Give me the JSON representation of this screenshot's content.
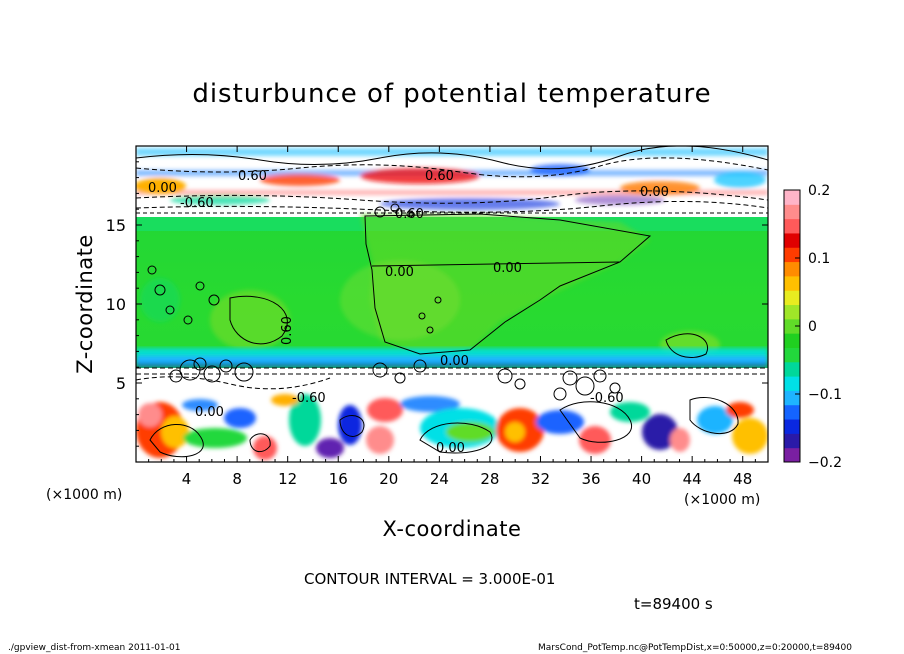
{
  "chart_data": {
    "type": "heatmap",
    "title": "disturbunce of potential temperature",
    "xlabel": "X-coordinate",
    "ylabel": "Z-coordinate",
    "x_unit": "(×1000 m)",
    "z_unit": "(×1000 m)",
    "xlim": [
      0,
      50
    ],
    "ylim": [
      0,
      20
    ],
    "x_ticks": [
      4,
      8,
      12,
      16,
      20,
      24,
      28,
      32,
      36,
      40,
      44,
      48
    ],
    "y_ticks": [
      5,
      10,
      15
    ],
    "colorbar": {
      "min": -0.2,
      "max": 0.2,
      "ticks": [
        0.2,
        0.1,
        0,
        -0.1,
        -0.2
      ],
      "tick_labels": [
        "0.2",
        "0.1",
        "0",
        "−0.1",
        "−0.2"
      ],
      "colors": [
        "#7a1fa2",
        "#2a1aa8",
        "#0a28e0",
        "#1464ff",
        "#1eb4ff",
        "#00e0e6",
        "#00d89a",
        "#22d83c",
        "#20d020",
        "#60dc28",
        "#a0e628",
        "#e8ec20",
        "#ffc000",
        "#ff8c00",
        "#ff3c00",
        "#e00000",
        "#ff5a5a",
        "#ff8c8c",
        "#ffb4c8"
      ]
    },
    "contour_labels": [
      "0.00",
      "0.00",
      "0.00",
      "0.00",
      "0.00",
      "0.00",
      "0.00",
      "-0.60",
      "-0.60",
      "-0.60",
      "0.60",
      "0.60",
      "0.60",
      "0.60"
    ],
    "contour_interval": "CONTOUR INTERVAL = 3.000E-01",
    "time_label": "t=89400 s"
  },
  "footer": {
    "left": "./gpview_dist-from-xmean  2011-01-01",
    "right": "MarsCond_PotTemp.nc@PotTempDist,x=0:50000,z=0:20000,t=89400"
  }
}
